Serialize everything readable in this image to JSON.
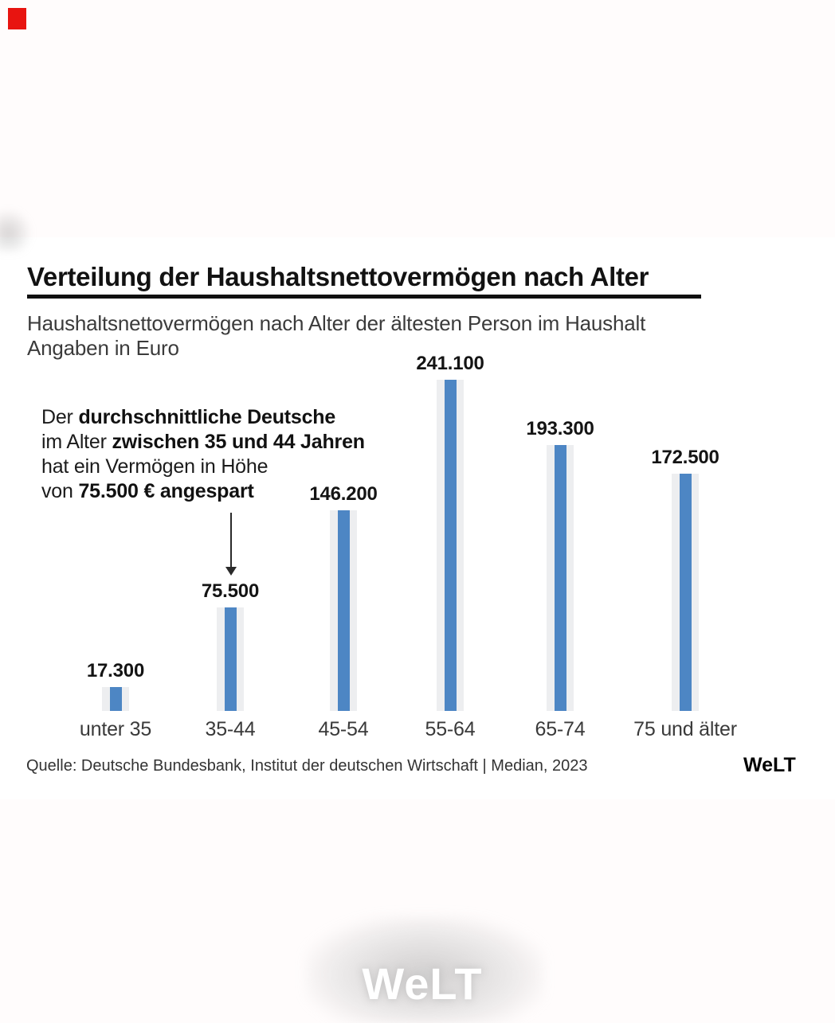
{
  "page": {
    "background": "#fffcfc",
    "card_background": "#ffffff"
  },
  "brand": {
    "top_left_square_color": "#e81410",
    "footer_logo_text": "WeLT",
    "watermark_text": "WeLT"
  },
  "header": {
    "title": "Verteilung der Haushaltsnettovermögen nach Alter",
    "subtitle_line1": "Haushaltsnettovermögen nach Alter der ältesten Person im Haushalt",
    "subtitle_line2": "Angaben in Euro"
  },
  "annotation": {
    "lines": [
      {
        "regular": "Der ",
        "bold": "durchschnittliche Deutsche"
      },
      {
        "regular": "im Alter ",
        "bold": "zwischen 35 und 44 Jahren"
      },
      {
        "regular": "hat ein Vermögen in Höhe",
        "bold": ""
      },
      {
        "regular": "von ",
        "bold": "75.500 € angespart"
      }
    ]
  },
  "source": {
    "text": "Quelle: Deutsche Bundesbank, Institut der deutschen Wirtschaft | Median, 2023"
  },
  "chart_data": {
    "type": "bar",
    "title": "Verteilung der Haushaltsnettovermögen nach Alter",
    "subtitle": "Haushaltsnettovermögen nach Alter der ältesten Person im Haushalt",
    "unit_note": "Angaben in Euro",
    "categories": [
      "unter 35",
      "35-44",
      "45-54",
      "55-64",
      "65-74",
      "75 und älter"
    ],
    "values": [
      17300,
      75500,
      146200,
      241100,
      193300,
      172500
    ],
    "value_labels": [
      "17.300",
      "75.500",
      "146.200",
      "241.100",
      "193.300",
      "172.500"
    ],
    "ylim": [
      0,
      241100
    ],
    "grid": false,
    "legend": false,
    "bar_color": "#4d86c4",
    "track_color": "#edeef0",
    "source": "Quelle: Deutsche Bundesbank, Institut der deutschen Wirtschaft | Median, 2023"
  }
}
